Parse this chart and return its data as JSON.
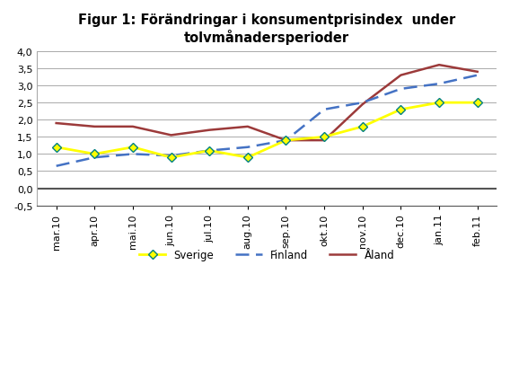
{
  "title": "Figur 1: Förändringar i konsumentprisindex  under\ntolvmånadersperioder",
  "categories": [
    "mar.10",
    "apr.10",
    "mai.10",
    "jun.10",
    "jul.10",
    "aug.10",
    "sep.10",
    "okt.10",
    "nov.10",
    "dec.10",
    "jan.11",
    "feb.11"
  ],
  "sverige": [
    1.2,
    1.0,
    1.2,
    0.9,
    1.1,
    0.9,
    1.4,
    1.5,
    1.8,
    2.3,
    2.5,
    2.5
  ],
  "finland": [
    0.65,
    0.9,
    1.0,
    0.95,
    1.1,
    1.2,
    1.4,
    2.3,
    2.5,
    2.9,
    3.05,
    3.3
  ],
  "aland": [
    1.9,
    1.8,
    1.8,
    1.55,
    1.7,
    1.8,
    1.4,
    1.4,
    2.45,
    3.3,
    3.6,
    3.4
  ],
  "ylim": [
    -0.5,
    4.0
  ],
  "yticks": [
    -0.5,
    0.0,
    0.5,
    1.0,
    1.5,
    2.0,
    2.5,
    3.0,
    3.5,
    4.0
  ],
  "sverige_color": "#ffff00",
  "sverige_marker_edge": "#008080",
  "finland_color": "#4472c4",
  "aland_color": "#9c3a3a",
  "background_color": "#ffffff",
  "grid_color": "#aaaaaa",
  "spine_color": "#aaaaaa",
  "zero_line_color": "#555555",
  "title_fontsize": 10.5,
  "tick_fontsize": 8,
  "legend_fontsize": 8.5
}
